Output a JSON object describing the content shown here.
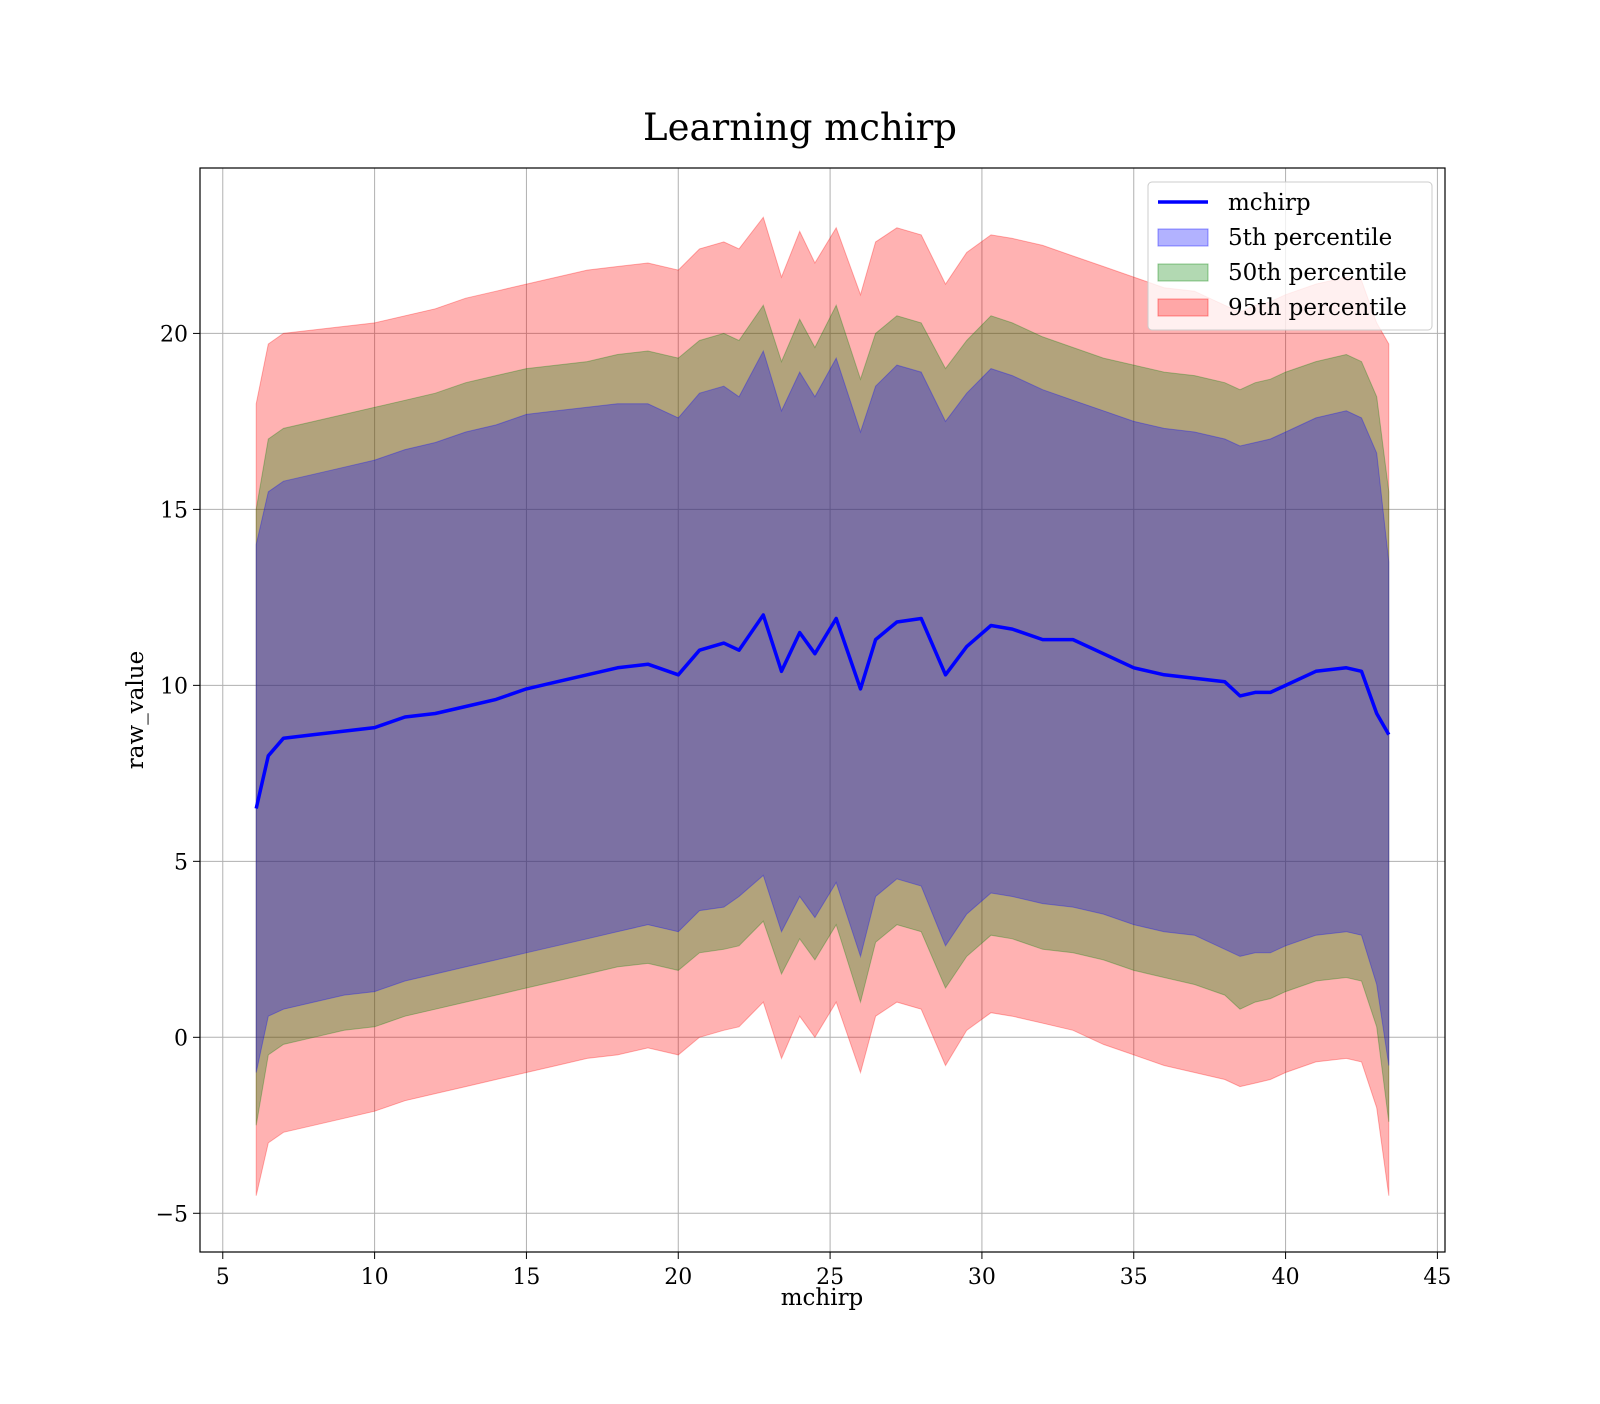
{
  "chart_data": {
    "type": "area",
    "title": "Learning mchirp",
    "xlabel": "mchirp",
    "ylabel": "raw_value",
    "xlim": [
      4.25,
      45.25
    ],
    "ylim": [
      -6.1,
      24.7
    ],
    "x_ticks": [
      5,
      10,
      15,
      20,
      25,
      30,
      35,
      40,
      45
    ],
    "y_ticks": [
      -5,
      0,
      5,
      10,
      15,
      20
    ],
    "x_tick_labels": [
      "5",
      "10",
      "15",
      "20",
      "25",
      "30",
      "35",
      "40",
      "45"
    ],
    "y_tick_labels": [
      "−5",
      "0",
      "5",
      "10",
      "15",
      "20"
    ],
    "grid": true,
    "legend_position": "top-right",
    "colors": {
      "line": "#0000ff",
      "band_5th": "#0000ff",
      "band_50th": "#008000",
      "band_95th": "#ff0000",
      "grid": "#b0b0b0",
      "axes": "#000000"
    },
    "band_opacity": 0.3,
    "x": [
      6.1,
      6.5,
      7,
      8,
      9,
      10,
      11,
      12,
      13,
      14,
      15,
      16,
      17,
      18,
      19,
      20,
      20.7,
      21.5,
      22,
      22.8,
      23.4,
      24,
      24.5,
      25.2,
      26,
      26.5,
      27.2,
      28,
      28.8,
      29.5,
      30.3,
      31,
      32,
      33,
      34,
      35,
      36,
      37,
      38,
      38.5,
      39,
      39.5,
      40,
      41,
      42,
      42.5,
      43,
      43.4
    ],
    "series": [
      {
        "name": "mchirp",
        "role": "line",
        "values": [
          6.5,
          8.0,
          8.5,
          8.6,
          8.7,
          8.8,
          9.1,
          9.2,
          9.4,
          9.6,
          9.9,
          10.1,
          10.3,
          10.5,
          10.6,
          10.3,
          11.0,
          11.2,
          11.0,
          12.0,
          10.4,
          11.5,
          10.9,
          11.9,
          9.9,
          11.3,
          11.8,
          11.9,
          10.3,
          11.1,
          11.7,
          11.6,
          11.3,
          11.3,
          10.9,
          10.5,
          10.3,
          10.2,
          10.1,
          9.7,
          9.8,
          9.8,
          10.0,
          10.4,
          10.5,
          10.4,
          9.2,
          8.6
        ]
      },
      {
        "name": "5th percentile",
        "lower": [
          -1.0,
          0.6,
          0.8,
          1.0,
          1.2,
          1.3,
          1.6,
          1.8,
          2.0,
          2.2,
          2.4,
          2.6,
          2.8,
          3.0,
          3.2,
          3.0,
          3.6,
          3.7,
          4.0,
          4.6,
          3.0,
          4.0,
          3.4,
          4.4,
          2.3,
          4.0,
          4.5,
          4.3,
          2.6,
          3.5,
          4.1,
          4.0,
          3.8,
          3.7,
          3.5,
          3.2,
          3.0,
          2.9,
          2.5,
          2.3,
          2.4,
          2.4,
          2.6,
          2.9,
          3.0,
          2.9,
          1.5,
          -0.8
        ],
        "upper": [
          14.0,
          15.5,
          15.8,
          16.0,
          16.2,
          16.4,
          16.7,
          16.9,
          17.2,
          17.4,
          17.7,
          17.8,
          17.9,
          18.0,
          18.0,
          17.6,
          18.3,
          18.5,
          18.2,
          19.5,
          17.8,
          18.9,
          18.2,
          19.3,
          17.2,
          18.5,
          19.1,
          18.9,
          17.5,
          18.3,
          19.0,
          18.8,
          18.4,
          18.1,
          17.8,
          17.5,
          17.3,
          17.2,
          17.0,
          16.8,
          16.9,
          17.0,
          17.2,
          17.6,
          17.8,
          17.6,
          16.6,
          13.5
        ]
      },
      {
        "name": "50th percentile",
        "lower": [
          -2.5,
          -0.5,
          -0.2,
          0.0,
          0.2,
          0.3,
          0.6,
          0.8,
          1.0,
          1.2,
          1.4,
          1.6,
          1.8,
          2.0,
          2.1,
          1.9,
          2.4,
          2.5,
          2.6,
          3.3,
          1.8,
          2.8,
          2.2,
          3.2,
          1.0,
          2.7,
          3.2,
          3.0,
          1.4,
          2.3,
          2.9,
          2.8,
          2.5,
          2.4,
          2.2,
          1.9,
          1.7,
          1.5,
          1.2,
          0.8,
          1.0,
          1.1,
          1.3,
          1.6,
          1.7,
          1.6,
          0.3,
          -2.4
        ],
        "upper": [
          15.0,
          17.0,
          17.3,
          17.5,
          17.7,
          17.9,
          18.1,
          18.3,
          18.6,
          18.8,
          19.0,
          19.1,
          19.2,
          19.4,
          19.5,
          19.3,
          19.8,
          20.0,
          19.8,
          20.8,
          19.2,
          20.4,
          19.6,
          20.8,
          18.7,
          20.0,
          20.5,
          20.3,
          19.0,
          19.8,
          20.5,
          20.3,
          19.9,
          19.6,
          19.3,
          19.1,
          18.9,
          18.8,
          18.6,
          18.4,
          18.6,
          18.7,
          18.9,
          19.2,
          19.4,
          19.2,
          18.2,
          15.5
        ]
      },
      {
        "name": "95th percentile",
        "lower": [
          -4.5,
          -3.0,
          -2.7,
          -2.5,
          -2.3,
          -2.1,
          -1.8,
          -1.6,
          -1.4,
          -1.2,
          -1.0,
          -0.8,
          -0.6,
          -0.5,
          -0.3,
          -0.5,
          0.0,
          0.2,
          0.3,
          1.0,
          -0.6,
          0.6,
          0.0,
          1.0,
          -1.0,
          0.6,
          1.0,
          0.8,
          -0.8,
          0.2,
          0.7,
          0.6,
          0.4,
          0.2,
          -0.2,
          -0.5,
          -0.8,
          -1.0,
          -1.2,
          -1.4,
          -1.3,
          -1.2,
          -1.0,
          -0.7,
          -0.6,
          -0.7,
          -2.0,
          -4.5
        ],
        "upper": [
          18.0,
          19.7,
          20.0,
          20.1,
          20.2,
          20.3,
          20.5,
          20.7,
          21.0,
          21.2,
          21.4,
          21.6,
          21.8,
          21.9,
          22.0,
          21.8,
          22.4,
          22.6,
          22.4,
          23.3,
          21.6,
          22.9,
          22.0,
          23.0,
          21.1,
          22.6,
          23.0,
          22.8,
          21.4,
          22.3,
          22.8,
          22.7,
          22.5,
          22.2,
          21.9,
          21.6,
          21.3,
          21.2,
          20.8,
          20.6,
          20.8,
          20.9,
          21.1,
          21.4,
          21.6,
          21.5,
          20.3,
          19.7
        ]
      }
    ]
  }
}
